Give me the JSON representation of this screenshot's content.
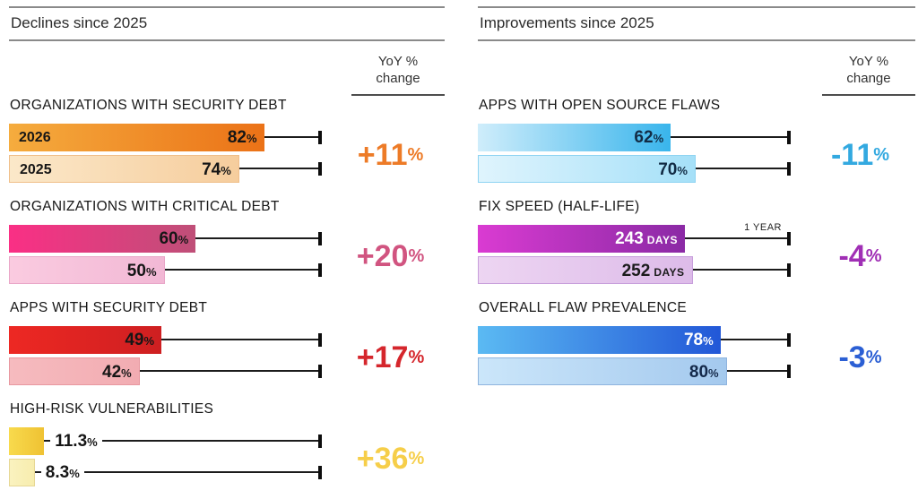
{
  "chart_data": [
    {
      "type": "bar",
      "panel": "left",
      "title": "Declines since 2025",
      "yoy_header": "YoY % change",
      "legend_years": [
        "2026",
        "2025"
      ],
      "axis": {
        "full_scale_tick": "100%",
        "grid": false
      },
      "sections": [
        {
          "title": "ORGANIZATIONS WITH SECURITY DEBT",
          "scale_max": 100,
          "yoy_change": {
            "text": "+11",
            "unit": "%",
            "color": "#ED7B27"
          },
          "bars": [
            {
              "label": "2026",
              "value": 82,
              "display": "82",
              "unit": "%",
              "value_inside": true,
              "text_color": "#161616",
              "color_left": "#F5AC3E",
              "color_right": "#EB7217"
            },
            {
              "label": "2025",
              "value": 74,
              "display": "74",
              "unit": "%",
              "value_inside": true,
              "text_color": "#161616",
              "color_left": "#FBE8C9",
              "color_right": "#F6CD9D",
              "border": "#F0BF8A"
            }
          ]
        },
        {
          "title": "ORGANIZATIONS WITH CRITICAL DEBT",
          "scale_max": 100,
          "yoy_change": {
            "text": "+20",
            "unit": "%",
            "color": "#D15480"
          },
          "bars": [
            {
              "value": 60,
              "display": "60",
              "unit": "%",
              "value_inside": true,
              "text_color": "#161616",
              "color_left": "#FA2F85",
              "color_right": "#BF4F78"
            },
            {
              "value": 50,
              "display": "50",
              "unit": "%",
              "value_inside": true,
              "text_color": "#161616",
              "color_left": "#FACBE0",
              "color_right": "#F2B8D5",
              "border": "#E9A6C8"
            }
          ]
        },
        {
          "title": "APPS WITH SECURITY DEBT",
          "scale_max": 100,
          "yoy_change": {
            "text": "+17",
            "unit": "%",
            "color": "#D5262C"
          },
          "bars": [
            {
              "value": 49,
              "display": "49",
              "unit": "%",
              "value_inside": true,
              "text_color": "#161616",
              "color_left": "#ED2823",
              "color_right": "#CE1F21"
            },
            {
              "value": 42,
              "display": "42",
              "unit": "%",
              "value_inside": true,
              "text_color": "#161616",
              "color_left": "#F6BBBF",
              "color_right": "#F2ACB2",
              "border": "#E898A0"
            }
          ]
        },
        {
          "title": "HIGH-RISK VULNERABILITIES",
          "scale_max": 100,
          "yoy_change": {
            "text": "+36",
            "unit": "%",
            "color": "#F6CE49"
          },
          "bars": [
            {
              "value": 11.3,
              "display": "11.3",
              "unit": "%",
              "value_inside": false,
              "text_color": "#161616",
              "color_left": "#F8DA4D",
              "color_right": "#EFC233"
            },
            {
              "value": 8.3,
              "display": "8.3",
              "unit": "%",
              "value_inside": false,
              "text_color": "#161616",
              "color_left": "#FAF2BF",
              "color_right": "#F7EDAE",
              "border": "#E6D795"
            }
          ]
        }
      ]
    },
    {
      "type": "bar",
      "panel": "right",
      "title": "Improvements since 2025",
      "yoy_header": "YoY % change",
      "axis": {
        "full_scale_tick": "100% / 1 YEAR",
        "grid": false
      },
      "sections": [
        {
          "title": "APPS WITH OPEN SOURCE FLAWS",
          "scale_max": 100,
          "yoy_change": {
            "text": "-11",
            "unit": "%",
            "color": "#33A9E0"
          },
          "bars": [
            {
              "value": 62,
              "display": "62",
              "unit": "%",
              "value_inside": true,
              "text_color": "#122B44",
              "color_left": "#CFEDFB",
              "color_right": "#39B5EC"
            },
            {
              "value": 70,
              "display": "70",
              "unit": "%",
              "value_inside": true,
              "text_color": "#122B44",
              "color_left": "#DFF4FD",
              "color_right": "#A5E0F8",
              "border": "#8FD4F2"
            }
          ]
        },
        {
          "title": "FIX SPEED (HALF-LIFE)",
          "scale_max": 365,
          "yoy_change": {
            "text": "-4",
            "unit": "%",
            "color": "#A02FB5"
          },
          "bars": [
            {
              "value": 243,
              "display": "243",
              "unit": "DAYS",
              "value_inside": true,
              "text_color": "#ffffff",
              "color_left": "#DA3BD2",
              "color_right": "#8B2AA5",
              "annotation": "1 YEAR"
            },
            {
              "value": 252,
              "display": "252",
              "unit": "DAYS",
              "value_inside": true,
              "text_color": "#1b1b1b",
              "color_left": "#EDD5F2",
              "color_right": "#DDBBE9",
              "border": "#C79EDB"
            }
          ]
        },
        {
          "title": "OVERALL FLAW PREVALENCE",
          "scale_max": 100,
          "yoy_change": {
            "text": "-3",
            "unit": "%",
            "color": "#2B5FD4"
          },
          "bars": [
            {
              "value": 78,
              "display": "78",
              "unit": "%",
              "value_inside": true,
              "text_color": "#ffffff",
              "color_left": "#5BBAF3",
              "color_right": "#2257D7"
            },
            {
              "value": 80,
              "display": "80",
              "unit": "%",
              "value_inside": true,
              "text_color": "#14294A",
              "color_left": "#CBE6FA",
              "color_right": "#A4C9EE",
              "border": "#8FB4DE"
            }
          ]
        }
      ]
    }
  ]
}
